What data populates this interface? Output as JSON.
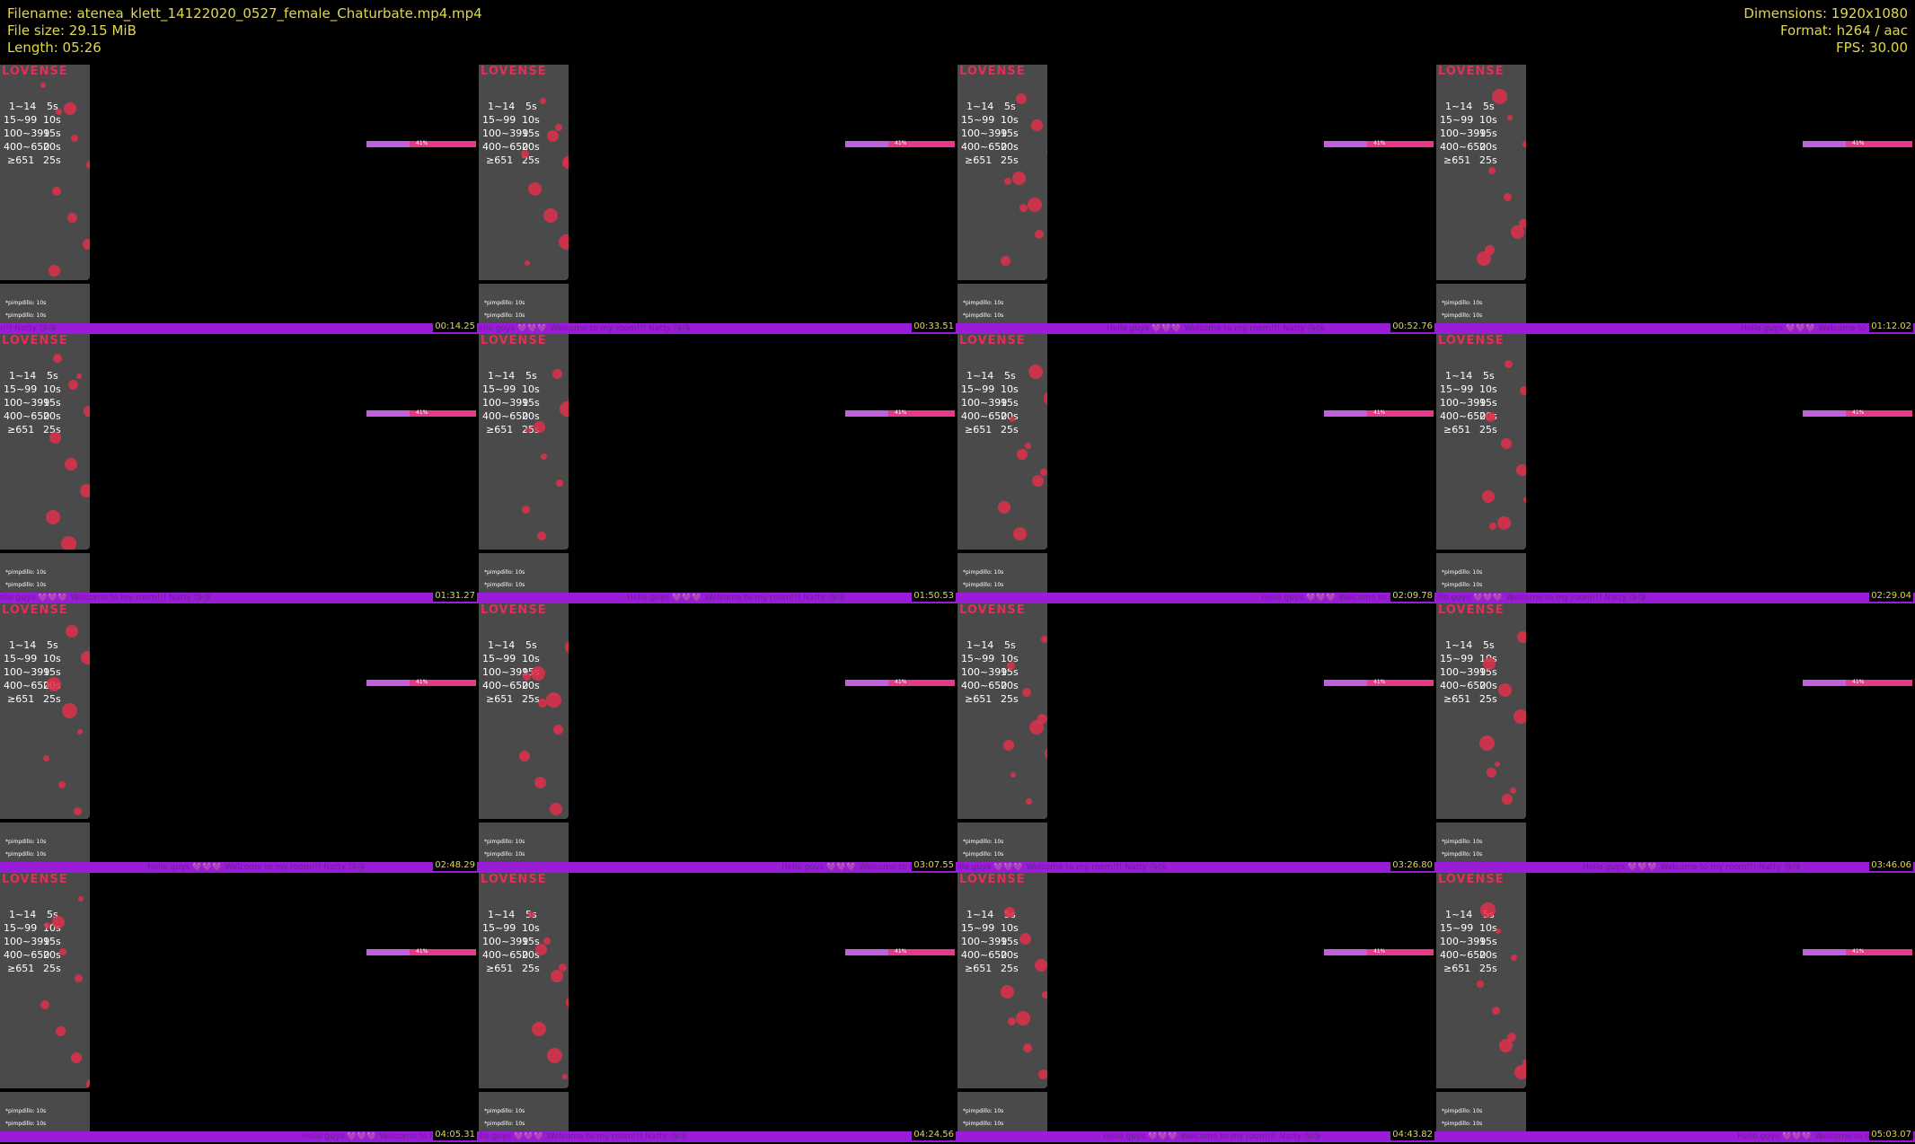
{
  "header": {
    "filename": "Filename: atenea_klett_14122020_0527_female_Chaturbate.mp4.mp4",
    "file_size": "File size: 29.15 MiB",
    "length": "Length: 05:26",
    "dimensions": "Dimensions: 1920x1080",
    "format": "Format: h264 / aac",
    "fps": "FPS: 30.00"
  },
  "panel": {
    "brand": "LOVENSE",
    "levels": [
      [
        "1~14",
        "5s"
      ],
      [
        "15~99",
        "10s"
      ],
      [
        "100~399",
        "15s"
      ],
      [
        "400~650",
        "20s"
      ],
      [
        "≥651",
        "25s"
      ]
    ],
    "progress": "41%",
    "chat_line": "*pimpdillo: 10s"
  },
  "ticker": "Hello guys 💜💜💜 Welcome to my room!!! Natty 😘😘",
  "thumbnails": [
    {
      "timestamp": "00:14.25"
    },
    {
      "timestamp": "00:33.51"
    },
    {
      "timestamp": "00:52.76"
    },
    {
      "timestamp": "01:12.02"
    },
    {
      "timestamp": "01:31.27"
    },
    {
      "timestamp": "01:50.53"
    },
    {
      "timestamp": "02:09.78"
    },
    {
      "timestamp": "02:29.04"
    },
    {
      "timestamp": "02:48.29"
    },
    {
      "timestamp": "03:07.55"
    },
    {
      "timestamp": "03:26.80"
    },
    {
      "timestamp": "03:46.06"
    },
    {
      "timestamp": "04:05.31"
    },
    {
      "timestamp": "04:24.56"
    },
    {
      "timestamp": "04:43.82"
    },
    {
      "timestamp": "05:03.07"
    }
  ]
}
